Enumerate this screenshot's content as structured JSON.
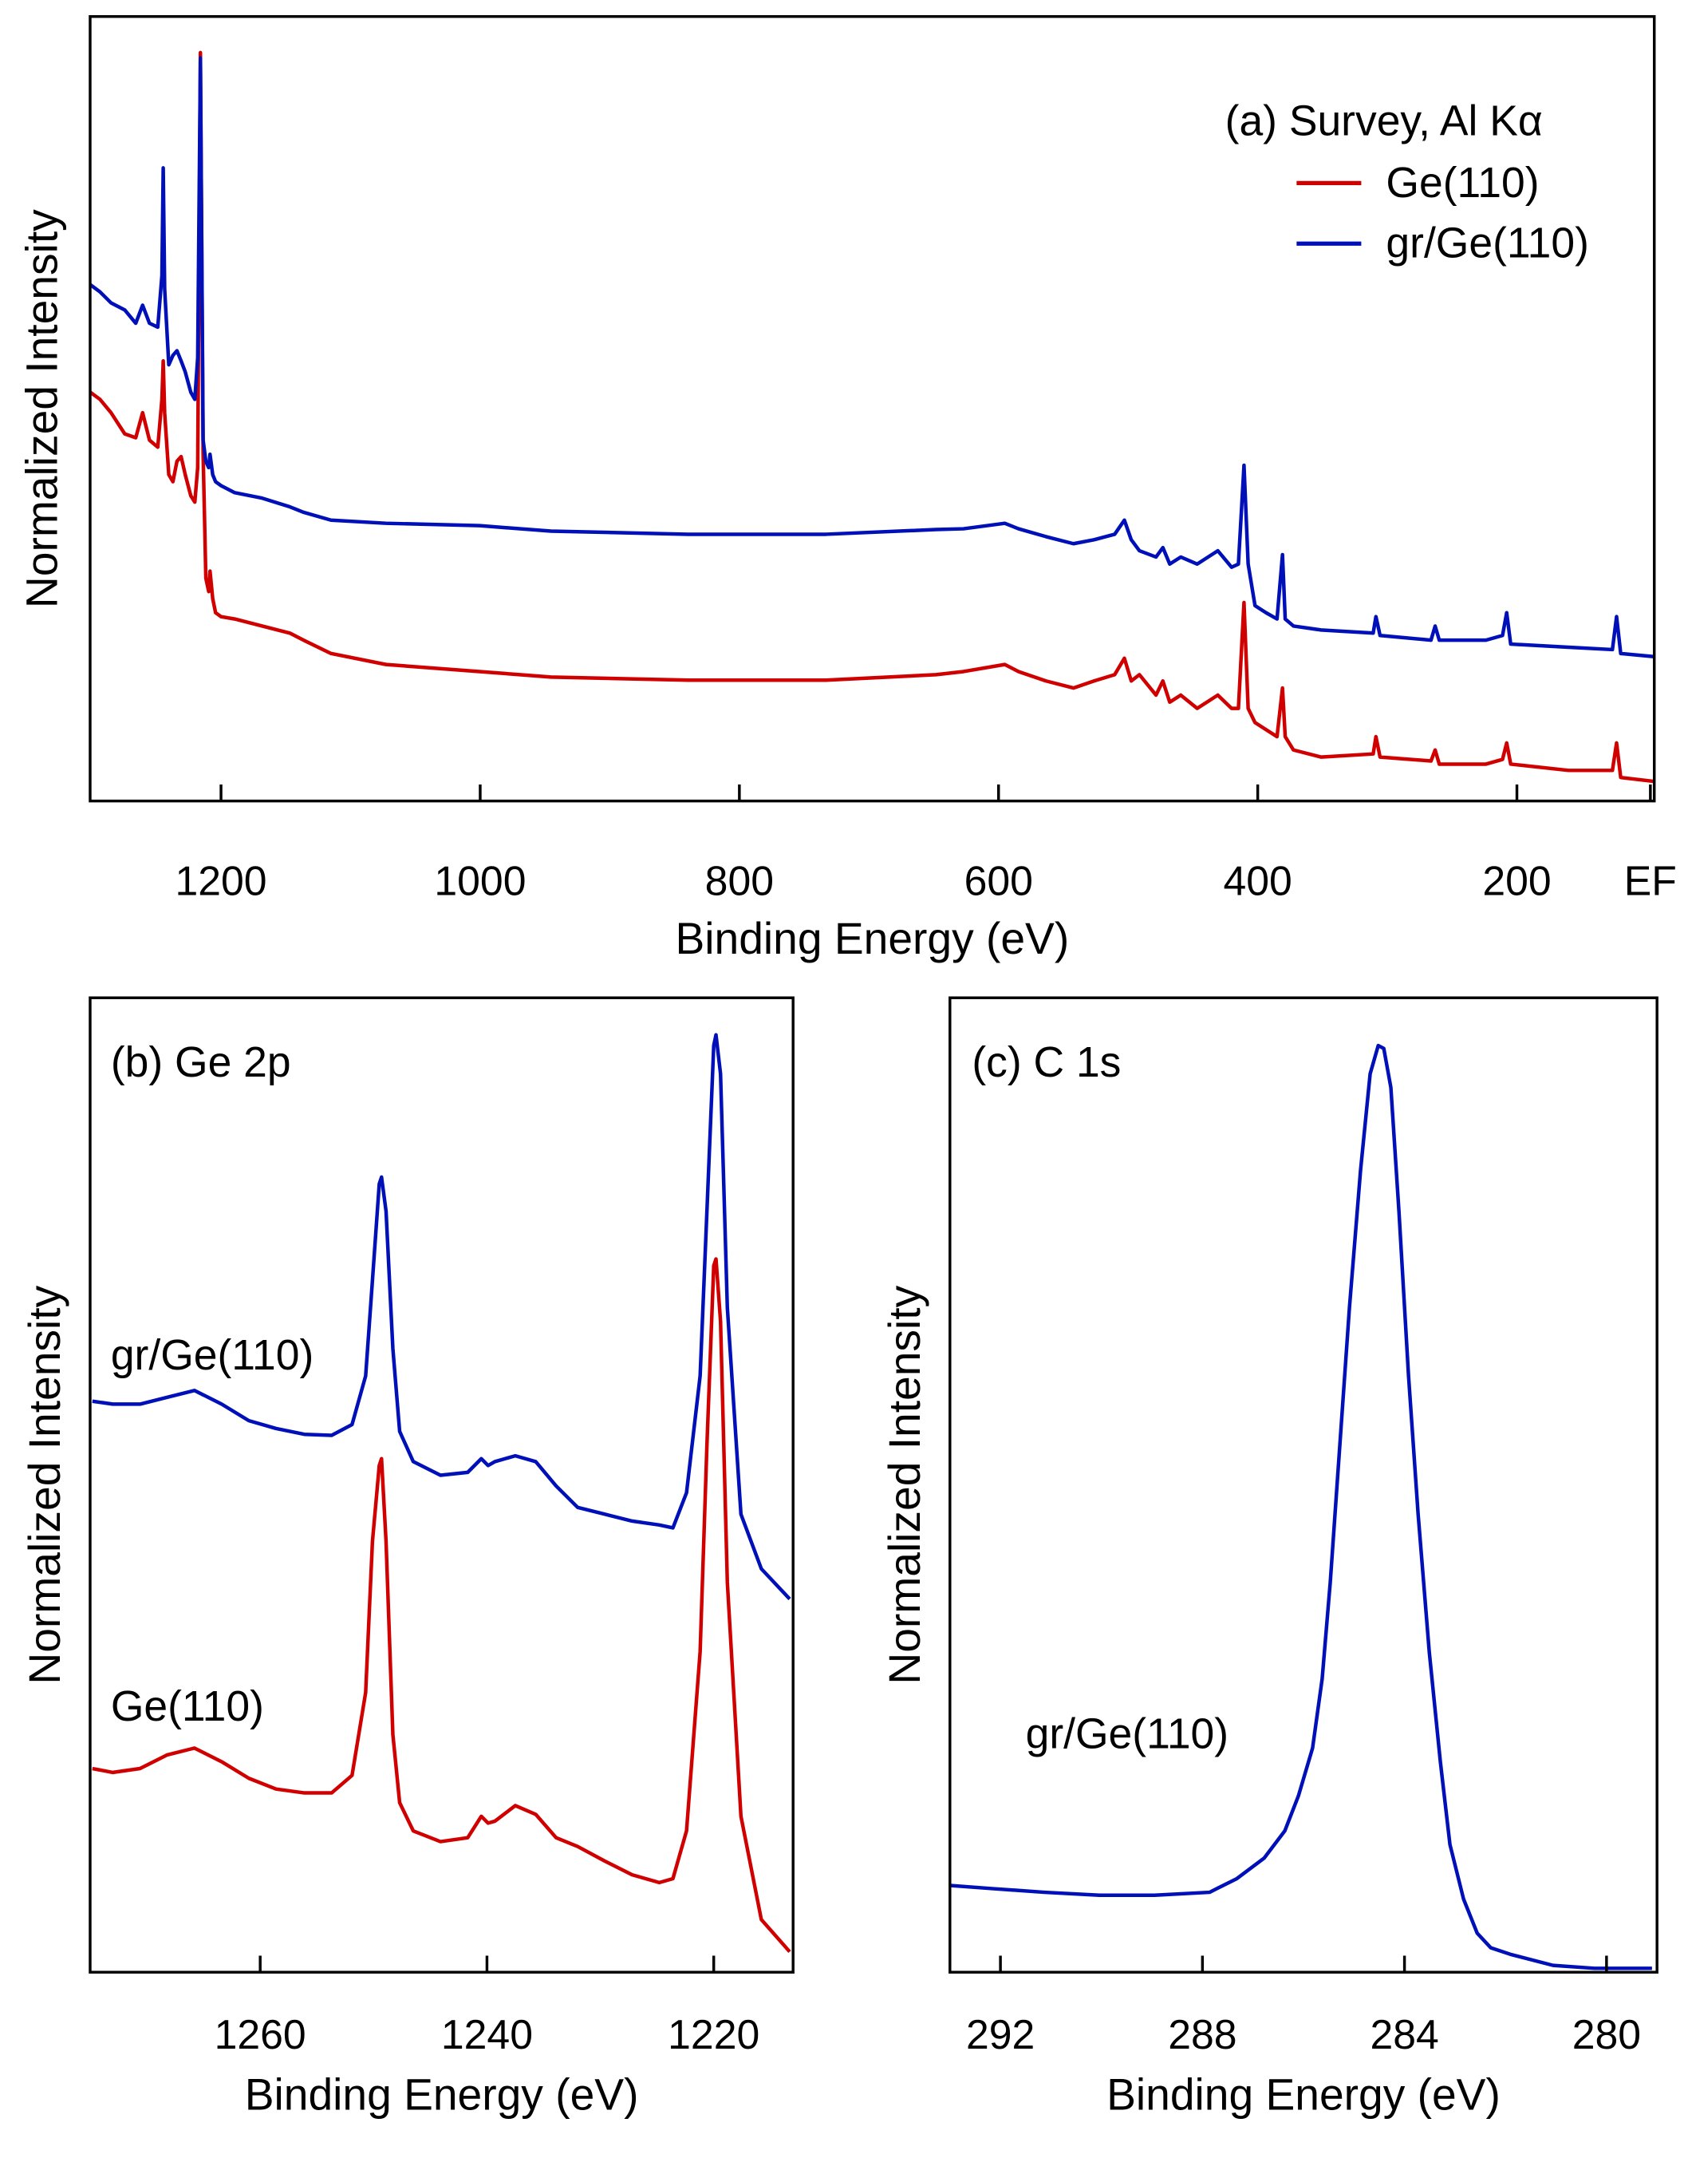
{
  "chart_data": [
    {
      "type": "line",
      "title": "(a) Survey, Al Kα",
      "xlabel": "Binding Energy (eV)",
      "ylabel": "Normalized Intensity",
      "xlim": [
        1301,
        94
      ],
      "xticks": [
        1200,
        1000,
        800,
        600,
        400,
        200,
        {
          "value": 97,
          "label": "EF"
        }
      ],
      "ylim": [
        0,
        1
      ],
      "legend": "upper right",
      "x": [
        1300.8,
        1293.4,
        1284.9,
        1274.3,
        1265.8,
        1260.5,
        1255.2,
        1248.8,
        1245.6,
        1244.6,
        1243.5,
        1240.3,
        1237.1,
        1234.0,
        1230.8,
        1227.6,
        1223.3,
        1220.2,
        1218.0,
        1215.9,
        1213.8,
        1211.7,
        1209.5,
        1208.5,
        1206.4,
        1204.2,
        1200.0,
        1189.4,
        1168.2,
        1146.9,
        1136.3,
        1115.1,
        1072.7,
        1000.5,
        945.4,
        839.3,
        733.2,
        648.3,
        627.1,
        595.2,
        584.6,
        563.4,
        542.2,
        526.3,
        510.4,
        502.9,
        497.6,
        491.3,
        478.5,
        473.2,
        467.9,
        459.4,
        446.7,
        430.8,
        420.2,
        414.9,
        410.6,
        407.4,
        402.1,
        393.6,
        385.1,
        380.9,
        378.8,
        372.4,
        351.2,
        310.9,
        308.8,
        305.6,
        266.3,
        263.1,
        259.9,
        223.9,
        211.1,
        207.9,
        204.8,
        160.2,
        126.3,
        123.1,
        119.9,
        94.4
      ],
      "series": [
        {
          "name": "Ge(110)",
          "color": "#d10000",
          "values": [
            0.521,
            0.512,
            0.495,
            0.468,
            0.463,
            0.495,
            0.46,
            0.451,
            0.512,
            0.561,
            0.495,
            0.416,
            0.407,
            0.433,
            0.439,
            0.416,
            0.389,
            0.381,
            0.425,
            0.954,
            0.442,
            0.284,
            0.267,
            0.293,
            0.258,
            0.24,
            0.235,
            0.232,
            0.223,
            0.214,
            0.205,
            0.188,
            0.174,
            0.165,
            0.158,
            0.154,
            0.154,
            0.161,
            0.165,
            0.174,
            0.165,
            0.153,
            0.144,
            0.153,
            0.161,
            0.182,
            0.153,
            0.161,
            0.135,
            0.153,
            0.126,
            0.135,
            0.118,
            0.135,
            0.118,
            0.118,
            0.253,
            0.118,
            0.1,
            0.091,
            0.082,
            0.144,
            0.082,
            0.065,
            0.056,
            0.06,
            0.082,
            0.056,
            0.051,
            0.065,
            0.047,
            0.047,
            0.053,
            0.074,
            0.047,
            0.039,
            0.039,
            0.074,
            0.03,
            0.025
          ]
        },
        {
          "name": "gr/Ge(110)",
          "color": "#0010b8",
          "values": [
            0.658,
            0.649,
            0.635,
            0.626,
            0.609,
            0.632,
            0.609,
            0.604,
            0.67,
            0.807,
            0.653,
            0.556,
            0.568,
            0.574,
            0.561,
            0.547,
            0.521,
            0.512,
            0.565,
            0.947,
            0.46,
            0.433,
            0.425,
            0.442,
            0.416,
            0.407,
            0.402,
            0.393,
            0.386,
            0.375,
            0.368,
            0.358,
            0.354,
            0.351,
            0.344,
            0.34,
            0.34,
            0.346,
            0.347,
            0.354,
            0.347,
            0.337,
            0.328,
            0.333,
            0.34,
            0.358,
            0.333,
            0.319,
            0.311,
            0.323,
            0.302,
            0.311,
            0.302,
            0.319,
            0.298,
            0.302,
            0.428,
            0.302,
            0.249,
            0.24,
            0.232,
            0.314,
            0.232,
            0.223,
            0.218,
            0.214,
            0.235,
            0.211,
            0.205,
            0.223,
            0.205,
            0.205,
            0.211,
            0.24,
            0.2,
            0.196,
            0.193,
            0.235,
            0.188,
            0.184
          ]
        }
      ]
    },
    {
      "type": "line",
      "title": "(b) Ge 2p",
      "xlabel": "Binding Energy (eV)",
      "ylabel": "Normalized Intensity",
      "xlim": [
        1275,
        1213
      ],
      "xticks": [
        1260,
        1240,
        1220
      ],
      "ylim": [
        0,
        1
      ],
      "x": [
        1274.8,
        1273.0,
        1270.6,
        1268.2,
        1265.8,
        1263.4,
        1261.0,
        1258.6,
        1256.1,
        1253.7,
        1251.9,
        1250.7,
        1250.1,
        1249.5,
        1249.3,
        1248.9,
        1248.3,
        1247.7,
        1246.5,
        1244.1,
        1241.7,
        1240.5,
        1239.9,
        1239.3,
        1237.5,
        1235.7,
        1233.9,
        1232.0,
        1229.6,
        1227.2,
        1224.8,
        1223.6,
        1222.4,
        1221.2,
        1220.6,
        1220.0,
        1219.8,
        1219.4,
        1218.8,
        1217.6,
        1215.8,
        1213.3
      ],
      "series": [
        {
          "name": "Ge(110)",
          "color": "#d10000",
          "values": [
            0.209,
            0.205,
            0.209,
            0.223,
            0.23,
            0.216,
            0.199,
            0.188,
            0.184,
            0.184,
            0.202,
            0.287,
            0.442,
            0.52,
            0.527,
            0.442,
            0.244,
            0.174,
            0.145,
            0.134,
            0.138,
            0.16,
            0.153,
            0.155,
            0.171,
            0.162,
            0.138,
            0.129,
            0.114,
            0.1,
            0.092,
            0.096,
            0.145,
            0.329,
            0.541,
            0.725,
            0.732,
            0.668,
            0.4,
            0.16,
            0.054,
            0.021
          ]
        },
        {
          "name": "gr/Ge(110)",
          "color": "#0010b8",
          "values": [
            0.586,
            0.583,
            0.583,
            0.59,
            0.597,
            0.583,
            0.566,
            0.558,
            0.552,
            0.551,
            0.562,
            0.612,
            0.71,
            0.809,
            0.816,
            0.781,
            0.64,
            0.555,
            0.524,
            0.51,
            0.513,
            0.527,
            0.52,
            0.524,
            0.53,
            0.524,
            0.499,
            0.477,
            0.47,
            0.463,
            0.459,
            0.456,
            0.492,
            0.612,
            0.781,
            0.951,
            0.962,
            0.922,
            0.682,
            0.47,
            0.414,
            0.383
          ]
        }
      ]
    },
    {
      "type": "line",
      "title": "(c) C 1s",
      "xlabel": "Binding Energy (eV)",
      "ylabel": "Normalized Intensity",
      "xlim": [
        293,
        279
      ],
      "xticks": [
        292,
        288,
        284,
        280
      ],
      "ylim": [
        0,
        1
      ],
      "x": [
        293.0,
        292.22,
        291.13,
        290.04,
        288.95,
        287.86,
        287.32,
        286.78,
        286.37,
        286.1,
        285.82,
        285.63,
        285.47,
        285.28,
        285.09,
        284.87,
        284.68,
        284.52,
        284.41,
        284.27,
        284.11,
        283.92,
        283.73,
        283.51,
        283.29,
        283.1,
        282.83,
        282.56,
        282.29,
        281.88,
        281.06,
        280.24,
        279.1
      ],
      "series": [
        {
          "name": "gr/Ge(110)",
          "color": "#0010b8",
          "values": [
            0.089,
            0.086,
            0.082,
            0.079,
            0.079,
            0.082,
            0.096,
            0.117,
            0.145,
            0.181,
            0.23,
            0.301,
            0.4,
            0.541,
            0.682,
            0.823,
            0.922,
            0.951,
            0.948,
            0.908,
            0.781,
            0.612,
            0.47,
            0.329,
            0.216,
            0.131,
            0.075,
            0.04,
            0.025,
            0.018,
            0.007,
            0.004,
            0.004
          ]
        }
      ]
    }
  ]
}
